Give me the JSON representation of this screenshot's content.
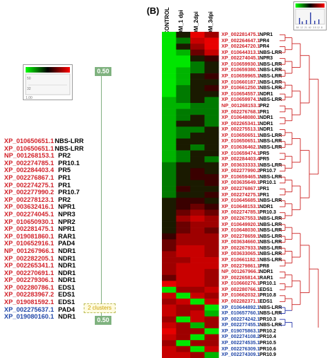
{
  "panel_label": "(B)",
  "left_scale_label": "0.50",
  "clusters_label": "2 clusters",
  "left_colorbar_ticks": [
    "1.00",
    "50",
    "32"
  ],
  "right_colorbar_ticks": [
    "50",
    "12",
    "21",
    "62",
    "3.5",
    "12",
    "8"
  ],
  "columns": [
    "CONTROL",
    "DM_1 dpi",
    "DM_2dpi",
    "DM_3dpi"
  ],
  "colors": {
    "red": "#d2222a",
    "blue": "#2147a8",
    "dendro_red": "#cc2222",
    "dendro_blue": "#2233aa",
    "green": "#00c800"
  },
  "left_items": [
    {
      "id": "XP_010650651.1",
      "name": "NBS-LRR",
      "group": "red"
    },
    {
      "id": "XP_010650651.1",
      "name": "NBS-LRR",
      "group": "red"
    },
    {
      "id": "NP_001268153.1",
      "name": "PR2",
      "group": "red"
    },
    {
      "id": "XP_002274785.1",
      "name": "PR10.1",
      "group": "red"
    },
    {
      "id": "XP_002284403.4",
      "name": "PR5",
      "group": "red"
    },
    {
      "id": "XP_002276867.1",
      "name": "PR1",
      "group": "red"
    },
    {
      "id": "XP_002274275.1",
      "name": "PR1",
      "group": "red"
    },
    {
      "id": "XP_002277990.2",
      "name": "PR10.7",
      "group": "red"
    },
    {
      "id": "XP_002278123.1",
      "name": "PR2",
      "group": "red"
    },
    {
      "id": "XP_003632416.1",
      "name": "NPR1",
      "group": "red"
    },
    {
      "id": "XP_002274045.1",
      "name": "NPR3",
      "group": "red"
    },
    {
      "id": "XP_010650930.1",
      "name": "NPR2",
      "group": "red"
    },
    {
      "id": "XP_002281475.1",
      "name": "NPR1",
      "group": "red"
    },
    {
      "id": "XP_019081860.1",
      "name": "RAR1",
      "group": "red"
    },
    {
      "id": "XP_010652916.1",
      "name": "PAD4",
      "group": "red"
    },
    {
      "id": "NP_001267966.1",
      "name": "NDR1",
      "group": "red"
    },
    {
      "id": "XP_002282205.1",
      "name": "NDR1",
      "group": "red"
    },
    {
      "id": "XP_002265341.1",
      "name": "NDR1",
      "group": "red"
    },
    {
      "id": "XP_002270691.1",
      "name": "NDR1",
      "group": "red"
    },
    {
      "id": "XP_002279306.1",
      "name": "NDR1",
      "group": "red"
    },
    {
      "id": "XP_002280786.1",
      "name": "EDS1",
      "group": "red"
    },
    {
      "id": "XP_002283967.2",
      "name": "EDS1",
      "group": "red"
    },
    {
      "id": "XP_019081592.1",
      "name": "EDS1",
      "group": "red"
    },
    {
      "id": "XP_002275637.1",
      "name": "PAD4",
      "group": "blue"
    },
    {
      "id": "XP_019080160.1",
      "name": "NDR1",
      "group": "blue"
    }
  ],
  "right_items": [
    {
      "id": "XP_002281475.1",
      "name": "NPR1",
      "group": "red",
      "heat": [
        0,
        3,
        8,
        6
      ]
    },
    {
      "id": "XP_002264647.1",
      "name": "PR4",
      "group": "red",
      "heat": [
        0,
        2,
        7,
        8
      ]
    },
    {
      "id": "XP_002264720.1",
      "name": "PR4",
      "group": "red",
      "heat": [
        0,
        3,
        6,
        8
      ]
    },
    {
      "id": "XP_010644313.1",
      "name": "NBS-LRR",
      "group": "red",
      "heat": [
        0,
        1,
        5,
        7
      ]
    },
    {
      "id": "XP_002274045.1",
      "name": "NPR3",
      "group": "red",
      "heat": [
        0,
        0,
        3,
        4
      ]
    },
    {
      "id": "XP_010659930.1",
      "name": "NBS-LRR",
      "group": "red",
      "heat": [
        0,
        0,
        2,
        3
      ]
    },
    {
      "id": "XP_010659380.1",
      "name": "NBS-LRR",
      "group": "red",
      "heat": [
        0,
        1,
        2,
        3
      ]
    },
    {
      "id": "XP_010659965.1",
      "name": "NBS-LRR",
      "group": "red",
      "heat": [
        0,
        1,
        3,
        4
      ]
    },
    {
      "id": "XP_010660187.1",
      "name": "NBS-LRR",
      "group": "red",
      "heat": [
        0,
        1,
        3,
        3
      ]
    },
    {
      "id": "XP_010661250.1",
      "name": "NBS-LRR",
      "group": "red",
      "heat": [
        0,
        2,
        3,
        4
      ]
    },
    {
      "id": "XP_010654557.1",
      "name": "NDR1",
      "group": "red",
      "heat": [
        0,
        2,
        3,
        3
      ]
    },
    {
      "id": "XP_010659974.1",
      "name": "NBS-LRR",
      "group": "red",
      "heat": [
        1,
        2,
        3,
        2
      ]
    },
    {
      "id": "NP_001268153.1",
      "name": "PR2",
      "group": "red",
      "heat": [
        1,
        1,
        2,
        2
      ]
    },
    {
      "id": "XP_002276768.1",
      "name": "PR1",
      "group": "red",
      "heat": [
        1,
        2,
        2,
        2
      ]
    },
    {
      "id": "XP_010648080.1",
      "name": "NDR1",
      "group": "red",
      "heat": [
        1,
        2,
        3,
        2
      ]
    },
    {
      "id": "XP_002265341.1",
      "name": "NDR1",
      "group": "red",
      "heat": [
        1,
        3,
        3,
        2
      ]
    },
    {
      "id": "XP_002275513.1",
      "name": "NDR1",
      "group": "red",
      "heat": [
        1,
        2,
        2,
        3
      ]
    },
    {
      "id": "XP_010650651.1",
      "name": "NBS-LRR",
      "group": "red",
      "heat": [
        1,
        2,
        3,
        3
      ]
    },
    {
      "id": "XP_010650651.1",
      "name": "NBS-LRR",
      "group": "red",
      "heat": [
        1,
        3,
        3,
        3
      ]
    },
    {
      "id": "XP_010636462.1",
      "name": "NBS-LRR",
      "group": "red",
      "heat": [
        1,
        3,
        2,
        3
      ]
    },
    {
      "id": "XP_010659474.1",
      "name": "PR5",
      "group": "red",
      "heat": [
        1,
        2,
        3,
        3
      ]
    },
    {
      "id": "XP_002284403.4",
      "name": "PR5",
      "group": "red",
      "heat": [
        1,
        2,
        3,
        2
      ]
    },
    {
      "id": "XP_003633333.1",
      "name": "NBS-LRR",
      "group": "red",
      "heat": [
        2,
        3,
        3,
        3
      ]
    },
    {
      "id": "XP_002277990.2",
      "name": "PR10.7",
      "group": "red",
      "heat": [
        2,
        3,
        4,
        3
      ]
    },
    {
      "id": "XP_010659465.1",
      "name": "NBS-LRR",
      "group": "red",
      "heat": [
        2,
        3,
        4,
        4
      ]
    },
    {
      "id": "XP_003635649.1",
      "name": "PR10.1",
      "group": "red",
      "heat": [
        2,
        3,
        3,
        4
      ]
    },
    {
      "id": "XP_002276867.1",
      "name": "PR1",
      "group": "red",
      "heat": [
        2,
        4,
        3,
        3
      ]
    },
    {
      "id": "XP_002274275.1",
      "name": "PR1",
      "group": "red",
      "heat": [
        2,
        3,
        3,
        4
      ]
    },
    {
      "id": "XP_010645685.1",
      "name": "NBS-LRR",
      "group": "red",
      "heat": [
        3,
        4,
        4,
        3
      ]
    },
    {
      "id": "XP_010648153.1",
      "name": "NDR1",
      "group": "red",
      "heat": [
        3,
        4,
        5,
        4
      ]
    },
    {
      "id": "XP_002274785.1",
      "name": "PR10.3",
      "group": "red",
      "heat": [
        3,
        5,
        6,
        5
      ]
    },
    {
      "id": "XP_002267553.1",
      "name": "NBS-LRR",
      "group": "red",
      "heat": [
        3,
        6,
        7,
        6
      ]
    },
    {
      "id": "XP_010649920.1",
      "name": "NBS-LRR",
      "group": "red",
      "heat": [
        3,
        5,
        6,
        6
      ]
    },
    {
      "id": "XP_010648030.1",
      "name": "NBS-LRR",
      "group": "red",
      "heat": [
        3,
        5,
        6,
        5
      ]
    },
    {
      "id": "XP_002278659.1",
      "name": "NBS-LRR",
      "group": "red",
      "heat": [
        4,
        6,
        6,
        6
      ]
    },
    {
      "id": "XP_003634660.1",
      "name": "NBS-LRR",
      "group": "red",
      "heat": [
        5,
        6,
        6,
        6
      ]
    },
    {
      "id": "XP_002267933.1",
      "name": "NBS-LRR",
      "group": "red",
      "heat": [
        5,
        7,
        7,
        6
      ]
    },
    {
      "id": "XP_003633065.1",
      "name": "NBS-LRR",
      "group": "red",
      "heat": [
        6,
        7,
        7,
        6
      ]
    },
    {
      "id": "XP_010661182.1",
      "name": "NBS-LRR",
      "group": "red",
      "heat": [
        6,
        6,
        7,
        7
      ]
    },
    {
      "id": "XP_002279861.1",
      "name": "PR8",
      "group": "red",
      "heat": [
        6,
        7,
        7,
        7
      ]
    },
    {
      "id": "NP_001267966.1",
      "name": "NDR1",
      "group": "red",
      "heat": [
        6,
        7,
        7,
        6
      ]
    },
    {
      "id": "XP_002265814.1",
      "name": "RAR1",
      "group": "red",
      "heat": [
        5,
        7,
        7,
        6
      ]
    },
    {
      "id": "XP_010660276.1",
      "name": "PR10.1",
      "group": "red",
      "heat": [
        8,
        7,
        7,
        6
      ]
    },
    {
      "id": "XP_002280766.1",
      "name": "EDS1",
      "group": "red",
      "heat": [
        0,
        6,
        6,
        7
      ]
    },
    {
      "id": "XP_010662032.1",
      "name": "PR10.8",
      "group": "red",
      "heat": [
        7,
        0,
        7,
        6
      ]
    },
    {
      "id": "XP_002282371.1",
      "name": "EDS1",
      "group": "red",
      "heat": [
        6,
        7,
        0,
        7
      ]
    },
    {
      "id": "XP_010644892.1",
      "name": "NBS-LRR",
      "group": "blue",
      "heat": [
        7,
        6,
        6,
        0
      ]
    },
    {
      "id": "XP_010657760.1",
      "name": "NBS-LRR",
      "group": "blue",
      "heat": [
        7,
        6,
        7,
        1
      ]
    },
    {
      "id": "XP_002274242.1",
      "name": "PR10.3",
      "group": "blue",
      "heat": [
        6,
        0,
        7,
        6
      ]
    },
    {
      "id": "XP_002277455.1",
      "name": "NBS-LRR",
      "group": "blue",
      "heat": [
        7,
        6,
        1,
        6
      ]
    },
    {
      "id": "XP_019075863.1",
      "name": "PR10.2",
      "group": "blue",
      "heat": [
        8,
        6,
        6,
        0
      ]
    },
    {
      "id": "XP_002274108.2",
      "name": "PR10.4",
      "group": "blue",
      "heat": [
        7,
        6,
        0,
        6
      ]
    },
    {
      "id": "XP_002274535.1",
      "name": "PR10.5",
      "group": "blue",
      "heat": [
        6,
        0,
        6,
        6
      ]
    },
    {
      "id": "XP_002276309.1",
      "name": "PR10.6",
      "group": "blue",
      "heat": [
        7,
        6,
        0,
        7
      ]
    },
    {
      "id": "XP_002274309.1",
      "name": "PR10.9",
      "group": "blue",
      "heat": [
        7,
        7,
        6,
        1
      ]
    }
  ]
}
